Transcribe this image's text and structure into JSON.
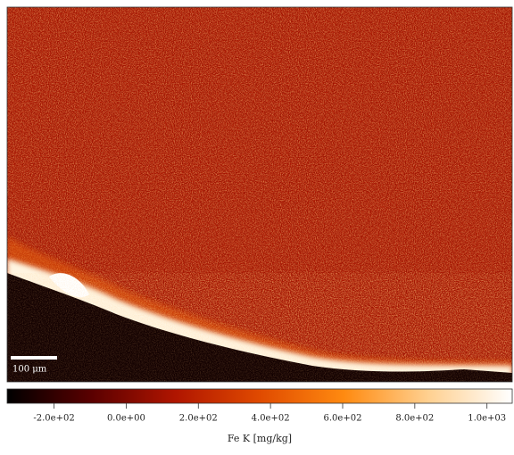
{
  "chart_data": {
    "type": "image",
    "scale_bar_label": "100 μm",
    "colorbar_label": "Fe K  [mg/kg]",
    "clim": [
      -330,
      1070
    ],
    "colormap": [
      "#000000",
      "#5a0000",
      "#b01500",
      "#e04a00",
      "#ff8a10",
      "#ffd090",
      "#ffffff"
    ],
    "colorbar_ticks": [
      {
        "value": -200,
        "label": "-2.0e+02"
      },
      {
        "value": 0,
        "label": "0.0e+00"
      },
      {
        "value": 200,
        "label": "2.0e+02"
      },
      {
        "value": 400,
        "label": "4.0e+02"
      },
      {
        "value": 600,
        "label": "6.0e+02"
      },
      {
        "value": 800,
        "label": "8.0e+02"
      },
      {
        "value": 1000,
        "label": "1.0e+03"
      }
    ]
  }
}
